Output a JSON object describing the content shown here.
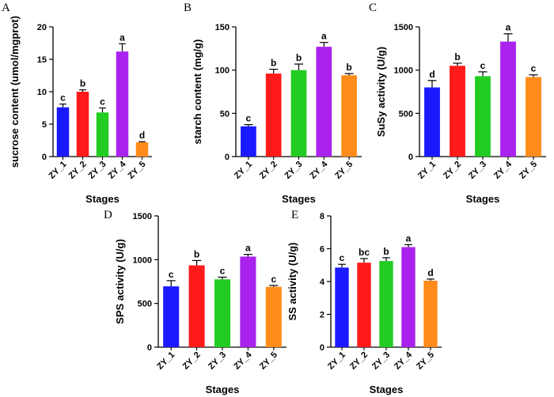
{
  "figure": {
    "x_categories": [
      "ZY_1",
      "ZY_2",
      "ZY_3",
      "ZY_4",
      "ZY_5"
    ],
    "bar_colors": [
      "#1a1aff",
      "#ff1a1a",
      "#22cc22",
      "#aa22ee",
      "#ff8c1a"
    ]
  },
  "chart_data": [
    {
      "panel": "A",
      "type": "bar",
      "title": "",
      "xlabel": "Stages",
      "ylabel": "sucrose content (umol/mgprot)",
      "categories": [
        "ZY_1",
        "ZY_2",
        "ZY_3",
        "ZY_4",
        "ZY_5"
      ],
      "values": [
        7.6,
        10.0,
        6.8,
        16.2,
        2.2
      ],
      "errors": [
        0.5,
        0.3,
        0.7,
        1.2,
        0.1
      ],
      "letters": [
        "c",
        "b",
        "c",
        "a",
        "d"
      ],
      "ylim": [
        0,
        20
      ],
      "yticks": [
        0,
        5,
        10,
        15,
        20
      ],
      "grid": false
    },
    {
      "panel": "B",
      "type": "bar",
      "title": "",
      "xlabel": "Stages",
      "ylabel": "starch content (mg/g)",
      "categories": [
        "ZY_1",
        "ZY_2",
        "ZY_3",
        "ZY_4",
        "ZY_5"
      ],
      "values": [
        35,
        96,
        100,
        127,
        94
      ],
      "errors": [
        2,
        5,
        7,
        5,
        2
      ],
      "letters": [
        "c",
        "b",
        "b",
        "a",
        "b"
      ],
      "ylim": [
        0,
        150
      ],
      "yticks": [
        0,
        50,
        100,
        150
      ],
      "grid": false
    },
    {
      "panel": "C",
      "type": "bar",
      "title": "",
      "xlabel": "Stages",
      "ylabel": "SuSy activity (U/g)",
      "categories": [
        "ZY_1",
        "ZY_2",
        "ZY_3",
        "ZY_4",
        "ZY_5"
      ],
      "values": [
        800,
        1050,
        930,
        1330,
        920
      ],
      "errors": [
        80,
        30,
        50,
        90,
        25
      ],
      "letters": [
        "d",
        "b",
        "c",
        "a",
        "c"
      ],
      "ylim": [
        0,
        1500
      ],
      "yticks": [
        0,
        500,
        1000,
        1500
      ],
      "grid": false
    },
    {
      "panel": "D",
      "type": "bar",
      "title": "",
      "xlabel": "Stages",
      "ylabel": "SPS activity (U/g)",
      "categories": [
        "ZY_1",
        "ZY_2",
        "ZY_3",
        "ZY_4",
        "ZY_5"
      ],
      "values": [
        695,
        935,
        775,
        1035,
        690
      ],
      "errors": [
        65,
        55,
        25,
        25,
        15
      ],
      "letters": [
        "c",
        "b",
        "c",
        "a",
        "c"
      ],
      "ylim": [
        0,
        1500
      ],
      "yticks": [
        0,
        500,
        1000,
        1500
      ],
      "grid": false
    },
    {
      "panel": "E",
      "type": "bar",
      "title": "",
      "xlabel": "Stages",
      "ylabel": "SS activity (U/g)",
      "categories": [
        "ZY_1",
        "ZY_2",
        "ZY_3",
        "ZY_4",
        "ZY_5"
      ],
      "values": [
        4.85,
        5.15,
        5.25,
        6.1,
        4.05
      ],
      "errors": [
        0.2,
        0.25,
        0.2,
        0.15,
        0.1
      ],
      "letters": [
        "c",
        "bc",
        "b",
        "a",
        "d"
      ],
      "ylim": [
        0,
        8
      ],
      "yticks": [
        0,
        2,
        4,
        6,
        8
      ],
      "grid": false
    }
  ]
}
